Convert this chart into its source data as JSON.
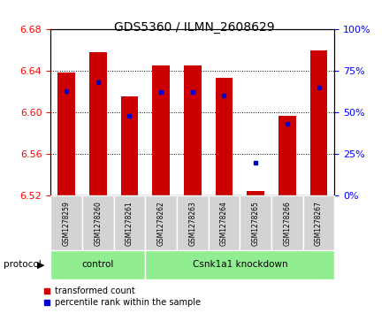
{
  "title": "GDS5360 / ILMN_2608629",
  "samples": [
    "GSM1278259",
    "GSM1278260",
    "GSM1278261",
    "GSM1278262",
    "GSM1278263",
    "GSM1278264",
    "GSM1278265",
    "GSM1278266",
    "GSM1278267"
  ],
  "red_values": [
    6.638,
    6.658,
    6.615,
    6.645,
    6.645,
    6.633,
    6.525,
    6.597,
    6.659
  ],
  "blue_percentiles": [
    63,
    68,
    48,
    62,
    62,
    60,
    20,
    43,
    65
  ],
  "ylim": [
    6.52,
    6.68
  ],
  "yticks": [
    6.52,
    6.56,
    6.6,
    6.64,
    6.68
  ],
  "right_yticks": [
    0,
    25,
    50,
    75,
    100
  ],
  "right_ylim": [
    0,
    100
  ],
  "bar_color": "#cc0000",
  "dot_color": "#0000cc",
  "bar_width": 0.55,
  "legend_red": "transformed count",
  "legend_blue": "percentile rank within the sample",
  "control_label": "control",
  "knockdown_label": "Csnk1a1 knockdown",
  "protocol_label": "protocol",
  "group_color": "#90ee90",
  "sample_box_color": "#d3d3d3"
}
